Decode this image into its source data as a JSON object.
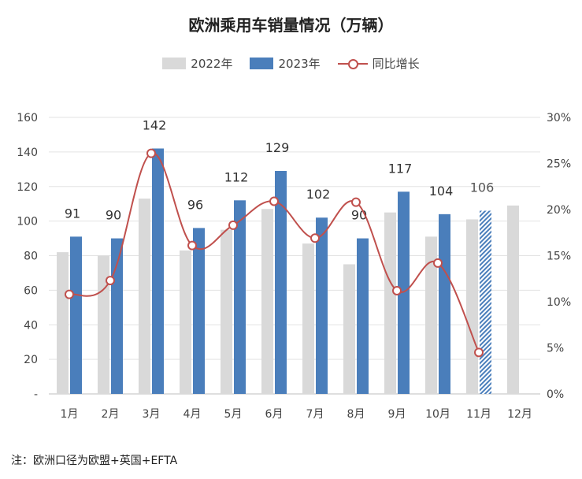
{
  "title": "欧洲乘用车销量情况（万辆）",
  "note": "注：欧洲口径为欧盟+英国+EFTA",
  "colors": {
    "y2022": "#d9d9d9",
    "y2023": "#4a7ebb",
    "yoy": "#c0504d"
  },
  "chart_data": {
    "type": "bar",
    "title": "欧洲乘用车销量情况（万辆）",
    "categories": [
      "1月",
      "2月",
      "3月",
      "4月",
      "5月",
      "6月",
      "7月",
      "8月",
      "9月",
      "10月",
      "11月",
      "12月"
    ],
    "series": [
      {
        "name": "2022年",
        "type": "bar",
        "values": [
          82,
          80,
          113,
          83,
          95,
          107,
          87,
          75,
          105,
          91,
          101,
          109
        ]
      },
      {
        "name": "2023年",
        "type": "bar",
        "values": [
          91,
          90,
          142,
          96,
          112,
          129,
          102,
          90,
          117,
          104,
          106,
          null
        ],
        "data_labels": [
          "91",
          "90",
          "142",
          "96",
          "112",
          "129",
          "102",
          "90",
          "117",
          "104",
          "106",
          ""
        ]
      },
      {
        "name": "同比增长",
        "type": "line",
        "axis": "right",
        "values": [
          10.8,
          12.3,
          26.1,
          16.1,
          18.3,
          20.9,
          16.9,
          20.8,
          11.2,
          14.2,
          4.5,
          null
        ]
      }
    ],
    "y_left": {
      "min": 0,
      "max": 160,
      "ticks": [
        "-",
        "20",
        "40",
        "60",
        "80",
        "100",
        "120",
        "140",
        "160"
      ]
    },
    "y_right": {
      "min": 0,
      "max": 30,
      "ticks": [
        "0%",
        "5%",
        "10%",
        "15%",
        "20%",
        "25%",
        "30%"
      ]
    },
    "legend_position": "top",
    "grid": true
  }
}
